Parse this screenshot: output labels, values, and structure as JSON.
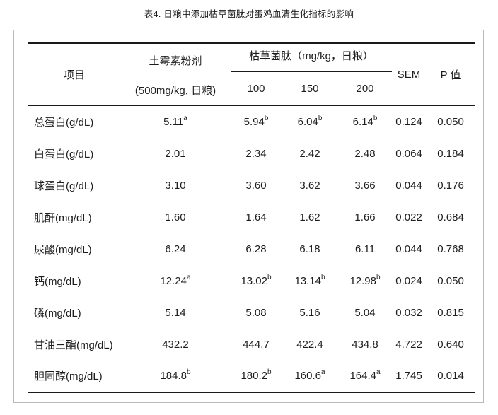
{
  "title": "表4. 日粮中添加枯草菌肽对蛋鸡血清生化指标的影响",
  "colors": {
    "text-color": "#1d1d1d",
    "rule-color": "#1a1a1a",
    "panel-border-color": "#b9b9b9"
  },
  "table": {
    "header": {
      "item": "项目",
      "control_line1": "土霉素粉剂",
      "control_line2": "(500mg/kg, 日粮)",
      "group": "枯草菌肽（mg/kg，日粮）",
      "doses": [
        "100",
        "150",
        "200"
      ],
      "sem": "SEM",
      "p_value": "P 值"
    },
    "rows": [
      {
        "label": "总蛋白(g/dL)",
        "values": [
          "5.11^a",
          "5.94^b",
          "6.04^b",
          "6.14^b",
          "0.124",
          "0.050"
        ]
      },
      {
        "label": "白蛋白(g/dL)",
        "values": [
          "2.01",
          "2.34",
          "2.42",
          "2.48",
          "0.064",
          "0.184"
        ]
      },
      {
        "label": "球蛋白(g/dL)",
        "values": [
          "3.10",
          "3.60",
          "3.62",
          "3.66",
          "0.044",
          "0.176"
        ]
      },
      {
        "label": "肌酐(mg/dL)",
        "values": [
          "1.60",
          "1.64",
          "1.62",
          "1.66",
          "0.022",
          "0.684"
        ]
      },
      {
        "label": "尿酸(mg/dL)",
        "values": [
          "6.24",
          "6.28",
          "6.18",
          "6.11",
          "0.044",
          "0.768"
        ]
      },
      {
        "label": "钙(mg/dL)",
        "values": [
          "12.24^a",
          "13.02^b",
          "13.14^b",
          "12.98^b",
          "0.024",
          "0.050"
        ]
      },
      {
        "label": "磷(mg/dL)",
        "values": [
          "5.14",
          "5.08",
          "5.16",
          "5.04",
          "0.032",
          "0.815"
        ]
      },
      {
        "label": "甘油三酯(mg/dL)",
        "values": [
          "432.2",
          "444.7",
          "422.4",
          "434.8",
          "4.722",
          "0.640"
        ]
      },
      {
        "label": "胆固醇(mg/dL)",
        "values": [
          "184.8^b",
          "180.2^b",
          "160.6^a",
          "164.4^a",
          "1.745",
          "0.014"
        ]
      }
    ]
  }
}
